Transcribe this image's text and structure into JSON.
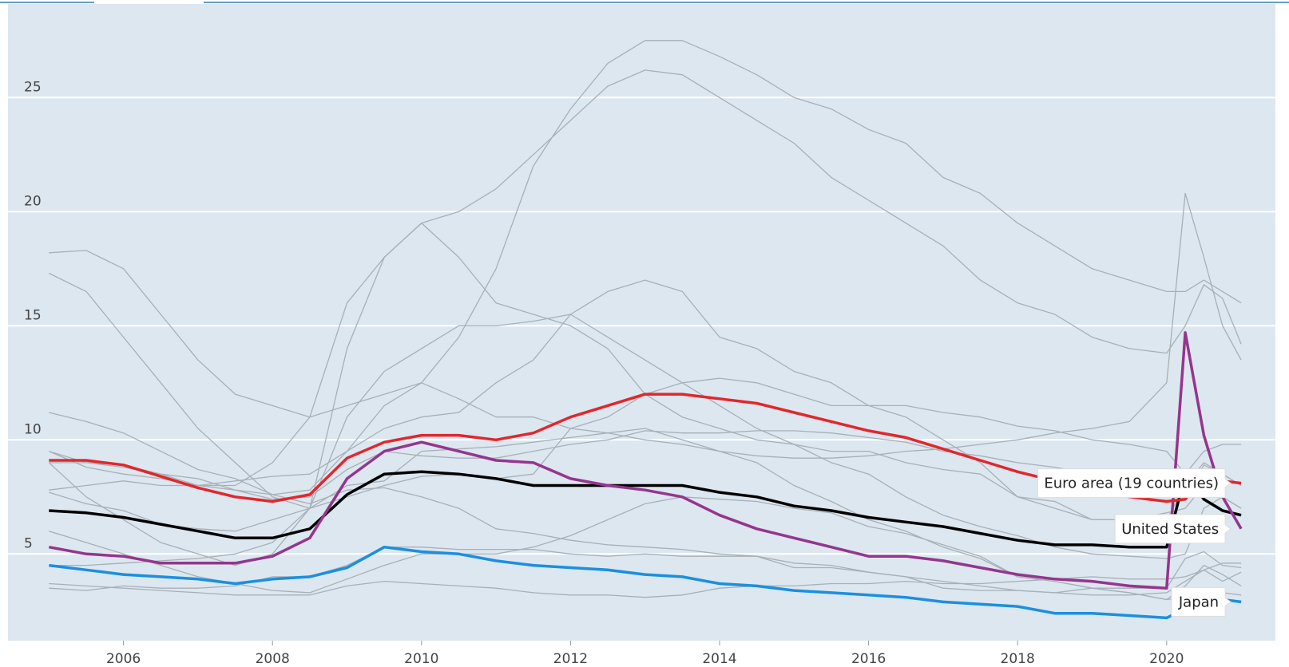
{
  "chart_data": {
    "type": "line",
    "x": [
      2005,
      2005.5,
      2006,
      2006.5,
      2007,
      2007.5,
      2008,
      2008.5,
      2009,
      2009.5,
      2010,
      2010.5,
      2011,
      2011.5,
      2012,
      2012.5,
      2013,
      2013.5,
      2014,
      2014.5,
      2015,
      2015.5,
      2016,
      2016.5,
      2017,
      2017.5,
      2018,
      2018.5,
      2019,
      2019.5,
      2020,
      2020.25,
      2020.5,
      2020.75,
      2021
    ],
    "xlim": [
      2004.45,
      2021.46
    ],
    "xticks": [
      2006,
      2008,
      2010,
      2012,
      2014,
      2016,
      2018,
      2020
    ],
    "ylim": [
      1.2,
      29.1
    ],
    "yticks": [
      5,
      10,
      15,
      20,
      25
    ],
    "grid": true,
    "series": [
      {
        "color": "#a7b0b6",
        "values": [
          9.5,
          9.0,
          8.8,
          8.5,
          8.3,
          7.8,
          7.6,
          7.8,
          9.5,
          11.5,
          12.5,
          14.5,
          17.5,
          22,
          24.5,
          26.5,
          27.5,
          27.5,
          26.8,
          26.0,
          25.0,
          24.5,
          23.6,
          23.0,
          21.5,
          20.8,
          19.5,
          18.5,
          17.5,
          17.0,
          16.5,
          16.5,
          17.0,
          16.5,
          16.0
        ]
      },
      {
        "color": "#a7b0b6",
        "values": [
          9.5,
          8.8,
          8.5,
          8.3,
          8.0,
          8.0,
          9.0,
          11.0,
          16.0,
          18.0,
          19.5,
          20.0,
          21.0,
          22.5,
          24.0,
          25.5,
          26.2,
          26.0,
          25.0,
          24.0,
          23.0,
          21.5,
          20.5,
          19.5,
          18.5,
          17.0,
          16.0,
          15.5,
          14.5,
          14.0,
          13.8,
          15.0,
          16.8,
          16.2,
          14.2
        ]
      },
      {
        "color": "#a7b0b6",
        "values": [
          18.2,
          18.3,
          17.5,
          15.5,
          13.5,
          12.0,
          11.5,
          11.0,
          11.5,
          12.0,
          12.5,
          11.8,
          11.0,
          11.0,
          10.5,
          10.3,
          10.0,
          9.8,
          9.5,
          9.3,
          9.2,
          9.2,
          9.3,
          9.5,
          9.6,
          9.8,
          10.0,
          10.3,
          10.5,
          10.8,
          12.5,
          20.8,
          18.0,
          15.0,
          13.5
        ]
      },
      {
        "color": "#a7b0b6",
        "values": [
          17.3,
          16.5,
          14.5,
          12.5,
          10.5,
          9.0,
          7.5,
          7.0,
          8.0,
          8.2,
          9.5,
          9.6,
          9.7,
          9.9,
          10.1,
          10.3,
          10.5,
          10.0,
          9.5,
          9.0,
          8.0,
          7.3,
          6.5,
          6.0,
          5.3,
          4.8,
          4.0,
          3.8,
          3.5,
          3.3,
          3.0,
          3.1,
          3.2,
          3.3,
          3.2
        ]
      },
      {
        "color": "#a7b0b6",
        "values": [
          4.5,
          4.5,
          4.6,
          4.7,
          4.8,
          5.0,
          5.5,
          7.0,
          11.0,
          13.0,
          14.0,
          15.0,
          15.0,
          15.2,
          15.5,
          14.5,
          13.5,
          12.5,
          11.5,
          10.5,
          9.8,
          9.0,
          8.5,
          7.5,
          6.7,
          6.2,
          5.8,
          5.3,
          5.0,
          4.9,
          4.8,
          5.0,
          7.0,
          7.5,
          7.0
        ]
      },
      {
        "color": "#a7b0b6",
        "values": [
          9.0,
          7.5,
          6.5,
          5.5,
          5.0,
          4.5,
          5.0,
          7.0,
          14.0,
          18.0,
          19.5,
          18.0,
          16.0,
          15.5,
          15.0,
          14.0,
          12.0,
          11.0,
          10.5,
          10.0,
          9.8,
          9.5,
          9.5,
          9.0,
          8.7,
          8.5,
          7.5,
          7.3,
          6.5,
          6.5,
          6.5,
          8.0,
          9.0,
          8.5,
          8.0
        ]
      },
      {
        "color": "#a7b0b6",
        "values": [
          7.8,
          8.0,
          8.2,
          8.0,
          8.0,
          8.2,
          8.4,
          8.5,
          9.5,
          10.5,
          11.0,
          11.2,
          12.5,
          13.5,
          15.5,
          16.5,
          17.0,
          16.5,
          14.5,
          14.0,
          13.0,
          12.5,
          11.5,
          11.0,
          10.0,
          9.0,
          7.5,
          7.0,
          6.5,
          6.5,
          6.8,
          7.0,
          8.0,
          7.5,
          7.0
        ]
      },
      {
        "color": "#a7b0b6",
        "values": [
          7.7,
          7.2,
          6.9,
          6.3,
          6.1,
          6.0,
          6.5,
          7.0,
          7.5,
          8.0,
          8.4,
          8.5,
          8.3,
          8.5,
          10.5,
          11.0,
          12.0,
          12.5,
          12.7,
          12.5,
          12.0,
          11.5,
          11.5,
          11.5,
          11.2,
          11.0,
          10.6,
          10.4,
          10.0,
          9.8,
          9.5,
          8.5,
          9.5,
          9.8,
          9.8
        ]
      },
      {
        "color": "#a7b0b6",
        "values": [
          9.0,
          9.0,
          8.9,
          8.5,
          8.0,
          7.8,
          7.4,
          7.5,
          8.7,
          9.5,
          9.3,
          9.2,
          9.2,
          9.5,
          9.8,
          10.0,
          10.4,
          10.3,
          10.3,
          10.4,
          10.4,
          10.3,
          10.1,
          9.9,
          9.5,
          9.3,
          9.0,
          8.8,
          8.5,
          8.3,
          8.0,
          7.5,
          8.9,
          8.5,
          8.0
        ]
      },
      {
        "color": "#a7b0b6",
        "values": [
          11.2,
          10.8,
          10.3,
          9.5,
          8.7,
          8.3,
          7.6,
          7.2,
          7.8,
          7.9,
          7.5,
          7.0,
          6.1,
          5.9,
          5.6,
          5.4,
          5.3,
          5.2,
          5.0,
          4.9,
          4.6,
          4.5,
          4.2,
          4.0,
          3.8,
          3.6,
          3.4,
          3.3,
          3.2,
          3.2,
          3.3,
          3.8,
          4.3,
          4.6,
          4.6
        ]
      },
      {
        "color": "#a7b0b6",
        "values": [
          6.0,
          5.5,
          5.0,
          4.5,
          4.0,
          3.7,
          3.4,
          3.3,
          3.9,
          4.5,
          5.0,
          5.0,
          5.0,
          5.3,
          5.8,
          6.5,
          7.2,
          7.5,
          7.4,
          7.3,
          7.0,
          6.8,
          6.2,
          5.9,
          5.4,
          4.9,
          4.0,
          3.8,
          3.5,
          3.3,
          3.0,
          3.6,
          4.5,
          4.1,
          3.6
        ]
      },
      {
        "color": "#a7b0b6",
        "values": [
          3.7,
          3.6,
          3.5,
          3.4,
          3.3,
          3.2,
          3.2,
          3.2,
          3.6,
          3.8,
          3.7,
          3.6,
          3.5,
          3.3,
          3.2,
          3.2,
          3.1,
          3.2,
          3.5,
          3.6,
          3.6,
          3.7,
          3.7,
          3.8,
          3.7,
          3.7,
          3.8,
          3.9,
          4.0,
          3.9,
          3.9,
          4.0,
          4.3,
          3.8,
          4.2
        ]
      },
      {
        "color": "#a7b0b6",
        "values": [
          3.5,
          3.4,
          3.6,
          3.5,
          3.5,
          3.6,
          4.0,
          4.0,
          4.5,
          5.3,
          5.3,
          5.2,
          5.2,
          5.2,
          5.0,
          4.9,
          5.0,
          4.9,
          4.9,
          4.9,
          4.4,
          4.4,
          4.2,
          4.0,
          3.5,
          3.4,
          3.4,
          3.3,
          3.5,
          3.5,
          3.5,
          4.8,
          5.1,
          4.5,
          4.4
        ]
      },
      {
        "name": "Japan",
        "color": "#1b8fdf",
        "values": [
          4.5,
          4.3,
          4.1,
          4.0,
          3.9,
          3.7,
          3.9,
          4.0,
          4.4,
          5.3,
          5.1,
          5.0,
          4.7,
          4.5,
          4.4,
          4.3,
          4.1,
          4.0,
          3.7,
          3.6,
          3.4,
          3.3,
          3.2,
          3.1,
          2.9,
          2.8,
          2.7,
          2.4,
          2.4,
          2.3,
          2.2,
          2.6,
          2.9,
          3.0,
          2.9
        ]
      },
      {
        "color": "#000000",
        "values": [
          6.9,
          6.8,
          6.6,
          6.3,
          6.0,
          5.7,
          5.7,
          6.1,
          7.6,
          8.5,
          8.6,
          8.5,
          8.3,
          8.0,
          8.0,
          8.0,
          8.0,
          8.0,
          7.7,
          7.5,
          7.1,
          6.9,
          6.6,
          6.4,
          6.2,
          5.9,
          5.6,
          5.4,
          5.4,
          5.3,
          5.3,
          8.5,
          7.4,
          6.9,
          6.7
        ]
      },
      {
        "name": "United States",
        "color": "#95358c",
        "values": [
          5.3,
          5.0,
          4.9,
          4.6,
          4.6,
          4.6,
          4.9,
          5.7,
          8.3,
          9.5,
          9.9,
          9.5,
          9.1,
          9.0,
          8.3,
          8.0,
          7.8,
          7.5,
          6.7,
          6.1,
          5.7,
          5.3,
          4.9,
          4.9,
          4.7,
          4.4,
          4.1,
          3.9,
          3.8,
          3.6,
          3.5,
          14.7,
          10.2,
          7.5,
          6.1
        ]
      },
      {
        "name": "Euro area (19 countries)",
        "color": "#e3262b",
        "values": [
          9.1,
          9.1,
          8.9,
          8.4,
          7.9,
          7.5,
          7.3,
          7.6,
          9.2,
          9.9,
          10.2,
          10.2,
          10.0,
          10.3,
          11.0,
          11.5,
          12.0,
          12.0,
          11.8,
          11.6,
          11.2,
          10.8,
          10.4,
          10.1,
          9.6,
          9.1,
          8.6,
          8.2,
          7.8,
          7.5,
          7.3,
          7.4,
          8.3,
          8.2,
          8.1
        ]
      }
    ]
  }
}
